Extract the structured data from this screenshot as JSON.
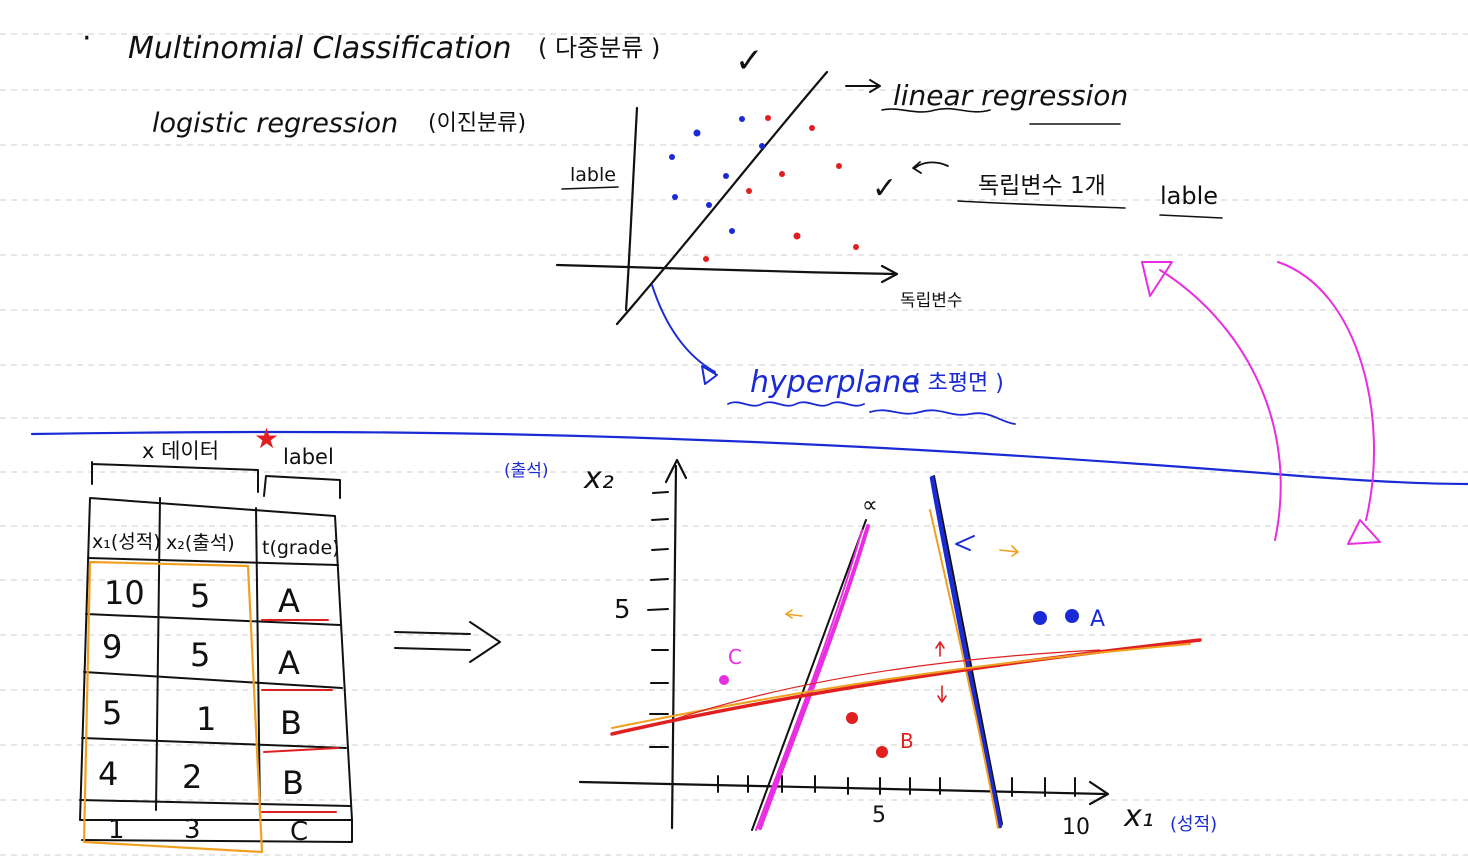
{
  "title": {
    "bullet": "·",
    "main": "Multinomial Classification",
    "paren": "( 다중분류 )",
    "check": "✓"
  },
  "subtitle": {
    "main": "logistic regression",
    "paren": "(이진분류)"
  },
  "top_plot": {
    "ylabel": "lable",
    "xlabel": "독립변수",
    "line_label": "linear regression",
    "independent_note": "독립변수 1개",
    "lable_note": "lable",
    "check": "✓",
    "hyperplane": "hyperplane",
    "hyperplane_paren": "( 초평면 )"
  },
  "table": {
    "x_data_label": "x 데이터",
    "label_header": "label",
    "columns": [
      "x₁(성적)",
      "x₂(출석)",
      "t(grade)"
    ],
    "rows": [
      [
        "10",
        "5",
        "A"
      ],
      [
        "9",
        "5",
        "A"
      ],
      [
        "5",
        "1",
        "B"
      ],
      [
        "4",
        "2",
        "B"
      ],
      [
        "1",
        "3",
        "C"
      ]
    ]
  },
  "bottom_plot": {
    "x_axis_label": "x₁",
    "x_axis_note": "(성적)",
    "y_axis_label": "x₂",
    "y_axis_note": "(출석)",
    "x_ticks": [
      "5",
      "10"
    ],
    "y_ticks": [
      "5"
    ],
    "class_labels": [
      "A",
      "B",
      "C"
    ],
    "star_mark": "★",
    "intersection_mark": "∝"
  },
  "colors": {
    "ink": "#111111",
    "red": "#e02020",
    "blue": "#1a2bd6",
    "magenta": "#e82ee0",
    "orange": "#f0a020",
    "guide": "#c8c8c8"
  }
}
